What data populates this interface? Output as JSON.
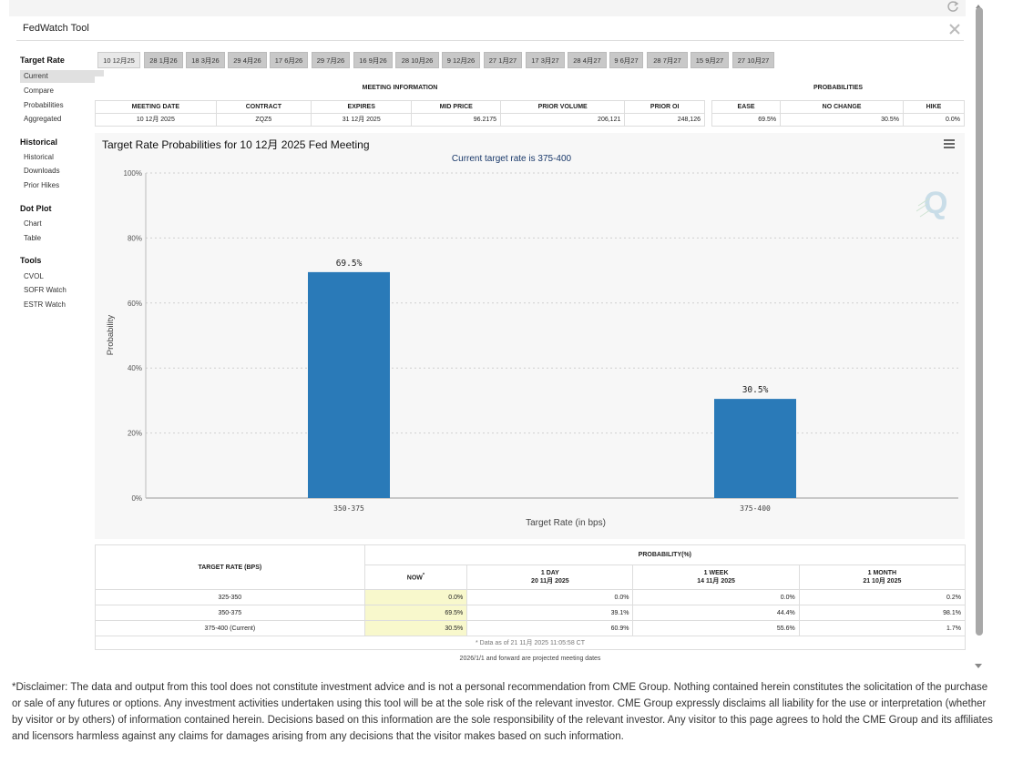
{
  "app": {
    "title": "FedWatch Tool"
  },
  "sidebar": {
    "groups": [
      {
        "heading": "Target Rate",
        "items": [
          "Current",
          "Compare",
          "Probabilities",
          "Aggregated"
        ]
      },
      {
        "heading": "Historical",
        "items": [
          "Historical",
          "Downloads",
          "Prior Hikes"
        ]
      },
      {
        "heading": "Dot Plot",
        "items": [
          "Chart",
          "Table"
        ]
      },
      {
        "heading": "Tools",
        "items": [
          "CVOL",
          "SOFR Watch",
          "ESTR Watch"
        ]
      }
    ],
    "active": "Current"
  },
  "tabs": [
    "10 12月25",
    "28 1月26",
    "18 3月26",
    "29 4月26",
    "17 6月26",
    "29 7月26",
    "16 9月26",
    "28 10月26",
    "9 12月26",
    "27 1月27",
    "17 3月27",
    "28 4月27",
    "9 6月27",
    "28 7月27",
    "15 9月27",
    "27 10月27"
  ],
  "meeting_info": {
    "heading": "MEETING INFORMATION",
    "headers": [
      "MEETING DATE",
      "CONTRACT",
      "EXPIRES",
      "MID PRICE",
      "PRIOR VOLUME",
      "PRIOR OI"
    ],
    "row": [
      "10 12月 2025",
      "ZQZ5",
      "31 12月 2025",
      "96.2175",
      "206,121",
      "248,126"
    ]
  },
  "probabilities": {
    "heading": "PROBABILITIES",
    "headers": [
      "EASE",
      "NO CHANGE",
      "HIKE"
    ],
    "row": [
      "69.5%",
      "30.5%",
      "0.0%"
    ]
  },
  "chart": {
    "title": "Target Rate Probabilities for 10 12月 2025 Fed Meeting",
    "subtitle": "Current target rate is 375-400"
  },
  "chart_data": {
    "type": "bar",
    "categories": [
      "350-375",
      "375-400"
    ],
    "values": [
      69.5,
      30.5
    ],
    "data_labels": [
      "69.5%",
      "30.5%"
    ],
    "xlabel": "Target Rate (in bps)",
    "ylabel": "Probability",
    "ylim": [
      0,
      100
    ],
    "yticks": [
      "0%",
      "20%",
      "40%",
      "60%",
      "80%",
      "100%"
    ],
    "bar_color": "#2a7ab8",
    "grid": true
  },
  "bottom_table": {
    "col_target": "TARGET RATE (BPS)",
    "col_prob": "PROBABILITY(%)",
    "now": "NOW",
    "now_mark": "*",
    "day": {
      "label": "1 DAY",
      "date": "20 11月 2025"
    },
    "week": {
      "label": "1 WEEK",
      "date": "14 11月 2025"
    },
    "month": {
      "label": "1 MONTH",
      "date": "21 10月 2025"
    },
    "rows": [
      {
        "rate": "325-350",
        "now": "0.0%",
        "day": "0.0%",
        "week": "0.0%",
        "month": "0.2%"
      },
      {
        "rate": "350-375",
        "now": "69.5%",
        "day": "39.1%",
        "week": "44.4%",
        "month": "98.1%"
      },
      {
        "rate": "375-400 (Current)",
        "now": "30.5%",
        "day": "60.9%",
        "week": "55.6%",
        "month": "1.7%"
      }
    ],
    "footnote": "* Data as of 21 11月 2025 11:05:58 CT",
    "note": "2026/1/1 and forward are projected meeting dates"
  },
  "disclaimer": "*Disclaimer: The data and output from this tool does not constitute investment advice and is not a personal recommendation from CME Group.  Nothing contained herein constitutes the solicitation of the purchase or sale of any futures or options.  Any investment activities undertaken using this tool will be at the sole risk of the relevant investor.  CME Group expressly disclaims all liability for the use or interpretation (whether by visitor or by others) of information contained herein. Decisions based on this information are the sole responsibility of the relevant investor.  Any visitor to this page agrees to hold the CME Group and its affiliates and licensors harmless against any claims for damages arising from any decisions that the visitor makes based on such information."
}
